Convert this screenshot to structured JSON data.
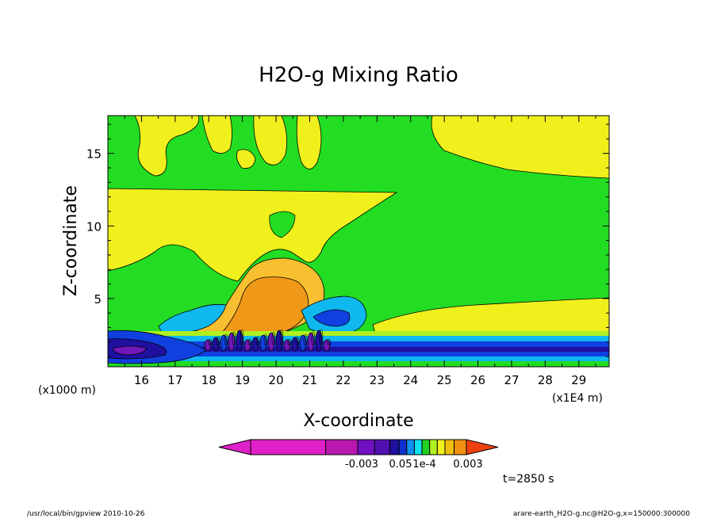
{
  "chart_data": {
    "type": "heatmap",
    "title": "H2O-g Mixing Ratio",
    "xlabel": "X-coordinate",
    "ylabel": "Z-coordinate",
    "x_unit_left": "(x1000 m)",
    "x_unit_right": "(x1E4 m)",
    "x_ticks": [
      "16",
      "17",
      "18",
      "19",
      "20",
      "21",
      "22",
      "23",
      "24",
      "25",
      "26",
      "27",
      "28",
      "29"
    ],
    "y_ticks": [
      "5",
      "10",
      "15"
    ],
    "xlim": [
      15.0,
      29.9
    ],
    "ylim": [
      0.3,
      17.6
    ],
    "colorbar_labels": [
      "-0.003",
      "0.05",
      "1e-4",
      "0.003"
    ],
    "colorbar_colors": [
      "#e020c8",
      "#b818b0",
      "#7010c0",
      "#5010b0",
      "#2010a0",
      "#1030d0",
      "#1090f0",
      "#10e0f0",
      "#20d020",
      "#b0f020",
      "#f0f020",
      "#f0c010",
      "#f09010",
      "#f04010"
    ],
    "time_label": "t=2850 s",
    "colors": {
      "green": "#22dd22",
      "yellow": "#f0f01c",
      "orange": "#f09818",
      "light_orange": "#f8c030",
      "cyan": "#10b8f0",
      "blue": "#1040e0",
      "dark_blue": "#2010a0",
      "purple": "#7018b8",
      "magenta": "#a020c8"
    }
  },
  "footer": {
    "left": "/usr/local/bin/gpview   2010-10-26",
    "right": "arare-earth_H2O-g.nc@H2O-g,x=150000:300000"
  }
}
